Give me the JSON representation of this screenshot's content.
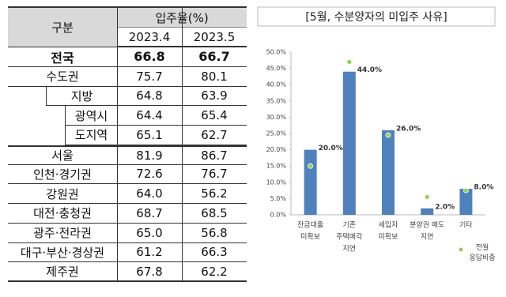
{
  "table": {
    "header": {
      "group": "구분",
      "rate": "입주율(%)",
      "months": [
        "2023.4",
        "2023.5"
      ]
    },
    "rows": [
      [
        "전국",
        "66.8",
        "66.7"
      ],
      [
        "수도권",
        "75.7",
        "80.1"
      ],
      [
        "지방",
        "64.8",
        "63.9"
      ],
      [
        "광역시",
        "64.4",
        "65.4"
      ],
      [
        "도지역",
        "65.1",
        "62.7"
      ],
      [
        "서울",
        "81.9",
        "86.7"
      ],
      [
        "인천·경기권",
        "72.6",
        "76.7"
      ],
      [
        "강원권",
        "64.0",
        "56.2"
      ],
      [
        "대전·충청권",
        "68.7",
        "68.5"
      ],
      [
        "광주·전라권",
        "65.0",
        "56.8"
      ],
      [
        "대구·부산·경상권",
        "61.2",
        "66.3"
      ],
      [
        "제주권",
        "67.8",
        "62.2"
      ]
    ]
  },
  "chart_data": {
    "type": "bar",
    "title": "[5월, 수분양자의 미입주 사유]",
    "categories": [
      [
        "잔금대출",
        "미확보"
      ],
      [
        "기존",
        "주택매각",
        "지연"
      ],
      [
        "세입자",
        "미확보"
      ],
      [
        "분양권 매도",
        "지연"
      ],
      [
        "기타"
      ]
    ],
    "series": [
      {
        "name": "5월",
        "color": "#4f81bd",
        "values": [
          20.0,
          44.0,
          26.0,
          2.0,
          8.0
        ],
        "value_labels": [
          "20.0%",
          "44.0%",
          "26.0%",
          "2.0%",
          "8.0%"
        ]
      },
      {
        "name": "전월 응답비중",
        "color": "#92d050",
        "marker": "dot",
        "values": [
          15.0,
          47.0,
          24.5,
          5.5,
          7.5
        ]
      }
    ],
    "ylim": [
      0,
      50
    ],
    "yticks": [
      {
        "value": 0,
        "label": "0.0%"
      },
      {
        "value": 5,
        "label": "5.0%"
      },
      {
        "value": 10,
        "label": "10.0%"
      },
      {
        "value": 15,
        "label": "15.0%"
      },
      {
        "value": 20,
        "label": "20.0%"
      },
      {
        "value": 25,
        "label": "25.0%"
      },
      {
        "value": 30,
        "label": "30.0%"
      },
      {
        "value": 35,
        "label": "35.0%"
      },
      {
        "value": 40,
        "label": "40.0%"
      },
      {
        "value": 45,
        "label": "45.0%"
      },
      {
        "value": 50,
        "label": "50.0%"
      }
    ]
  }
}
